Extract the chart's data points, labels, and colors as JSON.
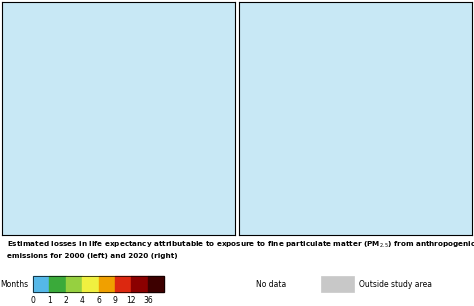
{
  "figsize": [
    4.74,
    3.06
  ],
  "dpi": 100,
  "background_color": "#ffffff",
  "map_ocean_color": "#c8e8f5",
  "map_outside_color": "#c8c8c8",
  "border_color": "#666666",
  "colorbar_colors": [
    "#55b8e8",
    "#3aaa3a",
    "#96d040",
    "#f0f040",
    "#f0a000",
    "#dc2810",
    "#8b0000",
    "#3d0000"
  ],
  "colorbar_ticks": [
    0,
    1,
    2,
    4,
    6,
    9,
    12,
    36
  ],
  "colorbar_label": "Months",
  "no_data_color": "#ffffff",
  "no_data_label": "No data",
  "outside_color": "#c8c8c8",
  "outside_label": "Outside study area",
  "caption": "Estimated losses in life expectancy attributable to exposure to fine particulate matter (PM$_{2.5}$) from anthropogenic\nemissions for 2000 (left) and 2020 (right)",
  "left_country_colors": {
    "Norway": "#55b8e8",
    "Sweden": "#3aaa3a",
    "Finland": "#96d040",
    "Estonia": "#f0a000",
    "Latvia": "#f0a000",
    "Lithuania": "#dc2810",
    "Denmark": "#f0f040",
    "Iceland": "#55b8e8",
    "United Kingdom": "#f0a000",
    "Ireland": "#96d040",
    "Netherlands": "#8b0000",
    "Belgium": "#8b0000",
    "Luxembourg": "#8b0000",
    "Germany": "#8b0000",
    "France": "#dc2810",
    "Spain": "#f0f040",
    "Portugal": "#96d040",
    "Switzerland": "#8b0000",
    "Austria": "#8b0000",
    "Italy": "#dc2810",
    "Greece": "#dc2810",
    "Poland": "#dc2810",
    "Czech Republic": "#8b0000",
    "Czechia": "#8b0000",
    "Slovakia": "#8b0000",
    "Hungary": "#8b0000",
    "Romania": "#8b0000",
    "Bulgaria": "#dc2810",
    "Slovenia": "#dc2810",
    "Croatia": "#dc2810",
    "Bosnia and Herzegovina": "#dc2810",
    "Serbia": "#8b0000",
    "Montenegro": "#dc2810",
    "Albania": "#dc2810",
    "North Macedonia": "#dc2810",
    "Moldova": "#8b0000",
    "Ukraine": "#8b0000",
    "Belarus": "#dc2810",
    "Malta": "#dc2810",
    "Cyprus": "#dc2810"
  },
  "right_country_colors": {
    "Norway": "#55b8e8",
    "Sweden": "#3aaa3a",
    "Finland": "#3aaa3a",
    "Estonia": "#f0f040",
    "Latvia": "#f0f040",
    "Lithuania": "#f0f040",
    "Denmark": "#f0f040",
    "Iceland": "#55b8e8",
    "United Kingdom": "#f0f040",
    "Ireland": "#3aaa3a",
    "Netherlands": "#dc2810",
    "Belgium": "#8b0000",
    "Luxembourg": "#f0a000",
    "Germany": "#f0a000",
    "France": "#96d040",
    "Spain": "#3aaa3a",
    "Portugal": "#3aaa3a",
    "Switzerland": "#f0a000",
    "Austria": "#f0a000",
    "Italy": "#f0f040",
    "Greece": "#f0a000",
    "Poland": "#f0f040",
    "Czech Republic": "#f0a000",
    "Czechia": "#f0a000",
    "Slovakia": "#f0a000",
    "Hungary": "#f0a000",
    "Romania": "#f0a000",
    "Bulgaria": "#f0a000",
    "Slovenia": "#f0f040",
    "Croatia": "#f0f040",
    "Bosnia and Herzegovina": "#f0f040",
    "Serbia": "#f0a000",
    "Montenegro": "#f0f040",
    "Albania": "#f0a000",
    "North Macedonia": "#f0a000",
    "Moldova": "#f0a000",
    "Ukraine": "#f0f040",
    "Belarus": "#f0f040",
    "Malta": "#f0f040",
    "Cyprus": "#f0f040"
  },
  "extent": [
    -25,
    45,
    34,
    72
  ],
  "proj_lon": 10,
  "proj_lat": 52
}
